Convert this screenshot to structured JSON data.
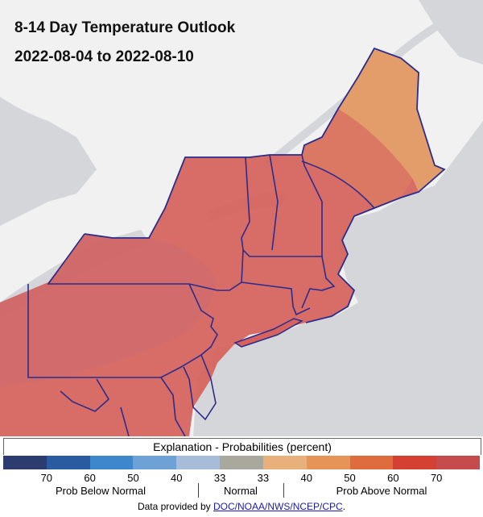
{
  "title": "8-14 Day Temperature Outlook",
  "subtitle": "2022-08-04 to 2022-08-10",
  "legend": {
    "title": "Explanation - Probabilities (percent)",
    "colors": [
      "#2c3c6e",
      "#2a5aa0",
      "#3e87cc",
      "#6ea2d6",
      "#a7bcd8",
      "#a8a89c",
      "#e8b07a",
      "#e69458",
      "#df6c3c",
      "#d44132",
      "#c64b4d"
    ],
    "ticks": [
      "70",
      "60",
      "50",
      "40",
      "33",
      "33",
      "40",
      "50",
      "60",
      "70"
    ],
    "groups": {
      "below": "Prob Below Normal",
      "normal": "Normal",
      "above": "Prob Above Normal"
    }
  },
  "footer": {
    "prefix": "Data provided by ",
    "link": "DOC/NOAA/NWS/NCEP/CPC",
    "suffix": "."
  },
  "map_colors": {
    "land": "#f2f2f2",
    "water": "#d4d6d9",
    "above_33": "#e4a06a",
    "above_40": "#dd8060",
    "above_50": "#d6635d",
    "border": "#2c2c8c"
  }
}
